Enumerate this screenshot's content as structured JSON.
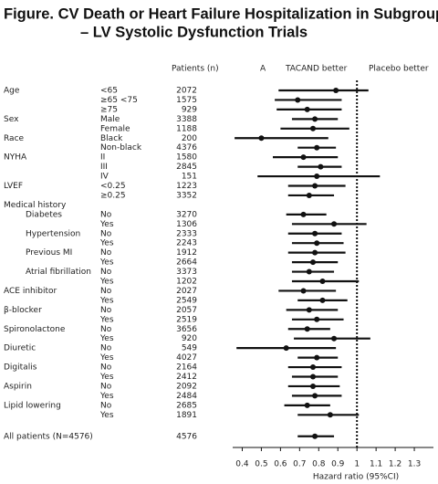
{
  "chart_data": {
    "type": "forest",
    "title": [
      "Figure. CV Death or Heart Failure Hospitalization in Subgroups",
      "– LV Systolic Dysfunction Trials"
    ],
    "n_header": "Patients (n)",
    "panel_label": "A",
    "left_label": "TACAND better",
    "right_label": "Placebo better",
    "x_label": "Hazard ratio (95%CI)",
    "xlim": [
      0.35,
      1.4
    ],
    "xticks": [
      0.4,
      0.5,
      0.6,
      0.7,
      0.8,
      0.9,
      1,
      1.1,
      1.2,
      1.3
    ],
    "reference": 1,
    "color": "#111111",
    "rows": [
      {
        "group": "Age",
        "subgroup": "<65",
        "n": 2072,
        "hr": 0.89,
        "lo": 0.59,
        "hi": 1.06
      },
      {
        "subgroup": "≥65 <75",
        "n": 1575,
        "hr": 0.69,
        "lo": 0.57,
        "hi": 0.92
      },
      {
        "subgroup": "≥75",
        "n": 929,
        "hr": 0.74,
        "lo": 0.58,
        "hi": 0.92
      },
      {
        "group": "Sex",
        "subgroup": "Male",
        "n": 3388,
        "hr": 0.78,
        "lo": 0.66,
        "hi": 0.9
      },
      {
        "subgroup": "Female",
        "n": 1188,
        "hr": 0.77,
        "lo": 0.6,
        "hi": 0.96
      },
      {
        "group": "Race",
        "subgroup": "Black",
        "n": 200,
        "hr": 0.5,
        "lo": 0.36,
        "hi": 0.85
      },
      {
        "subgroup": "Non-black",
        "n": 4376,
        "hr": 0.79,
        "lo": 0.69,
        "hi": 0.89
      },
      {
        "group": "NYHA",
        "subgroup": "II",
        "n": 1580,
        "hr": 0.72,
        "lo": 0.56,
        "hi": 0.9
      },
      {
        "subgroup": "III",
        "n": 2845,
        "hr": 0.81,
        "lo": 0.69,
        "hi": 0.92
      },
      {
        "subgroup": "IV",
        "n": 151,
        "hr": 0.79,
        "lo": 0.48,
        "hi": 1.12
      },
      {
        "group": "LVEF",
        "subgroup": "<0.25",
        "n": 1223,
        "hr": 0.78,
        "lo": 0.64,
        "hi": 0.94
      },
      {
        "subgroup": "≥0.25",
        "n": 3352,
        "hr": 0.75,
        "lo": 0.64,
        "hi": 0.88
      },
      {
        "group": "Medical history"
      },
      {
        "label": "Diabetes",
        "subgroup": "No",
        "n": 3270,
        "hr": 0.72,
        "lo": 0.63,
        "hi": 0.84
      },
      {
        "subgroup": "Yes",
        "n": 1306,
        "hr": 0.88,
        "lo": 0.66,
        "hi": 1.05
      },
      {
        "label": "Hypertension",
        "subgroup": "No",
        "n": 2333,
        "hr": 0.78,
        "lo": 0.64,
        "hi": 0.92
      },
      {
        "subgroup": "Yes",
        "n": 2243,
        "hr": 0.79,
        "lo": 0.66,
        "hi": 0.93
      },
      {
        "label": "Previous MI",
        "subgroup": "No",
        "n": 1912,
        "hr": 0.78,
        "lo": 0.64,
        "hi": 0.94
      },
      {
        "subgroup": "Yes",
        "n": 2664,
        "hr": 0.77,
        "lo": 0.66,
        "hi": 0.9
      },
      {
        "label": "Atrial  fibrillation",
        "subgroup": "No",
        "n": 3373,
        "hr": 0.75,
        "lo": 0.66,
        "hi": 0.88
      },
      {
        "subgroup": "Yes",
        "n": 1202,
        "hr": 0.82,
        "lo": 0.66,
        "hi": 1.01
      },
      {
        "group": "ACE inhibitor",
        "subgroup": "No",
        "n": 2027,
        "hr": 0.72,
        "lo": 0.59,
        "hi": 0.89
      },
      {
        "subgroup": "Yes",
        "n": 2549,
        "hr": 0.82,
        "lo": 0.69,
        "hi": 0.95
      },
      {
        "group": "β-blocker",
        "subgroup": "No",
        "n": 2057,
        "hr": 0.75,
        "lo": 0.63,
        "hi": 0.9
      },
      {
        "subgroup": "Yes",
        "n": 2519,
        "hr": 0.79,
        "lo": 0.66,
        "hi": 0.93
      },
      {
        "group": "Spironolactone",
        "subgroup": "No",
        "n": 3656,
        "hr": 0.74,
        "lo": 0.64,
        "hi": 0.86
      },
      {
        "subgroup": "Yes",
        "n": 920,
        "hr": 0.88,
        "lo": 0.67,
        "hi": 1.07
      },
      {
        "group": "Diuretic",
        "subgroup": "No",
        "n": 549,
        "hr": 0.63,
        "lo": 0.37,
        "hi": 0.89
      },
      {
        "subgroup": "Yes",
        "n": 4027,
        "hr": 0.79,
        "lo": 0.69,
        "hi": 0.9
      },
      {
        "group": "Digitalis",
        "subgroup": "No",
        "n": 2164,
        "hr": 0.77,
        "lo": 0.64,
        "hi": 0.92
      },
      {
        "subgroup": "Yes",
        "n": 2412,
        "hr": 0.77,
        "lo": 0.66,
        "hi": 0.9
      },
      {
        "group": "Aspirin",
        "subgroup": "No",
        "n": 2092,
        "hr": 0.77,
        "lo": 0.64,
        "hi": 0.91
      },
      {
        "subgroup": "Yes",
        "n": 2484,
        "hr": 0.78,
        "lo": 0.66,
        "hi": 0.92
      },
      {
        "group": "Lipid lowering",
        "subgroup": "No",
        "n": 2685,
        "hr": 0.74,
        "lo": 0.62,
        "hi": 0.86
      },
      {
        "subgroup": "Yes",
        "n": 1891,
        "hr": 0.86,
        "lo": 0.69,
        "hi": 1.01
      },
      {
        "group": "All patients (N=4576)",
        "n": 4576,
        "hr": 0.78,
        "lo": 0.69,
        "hi": 0.88
      }
    ]
  }
}
